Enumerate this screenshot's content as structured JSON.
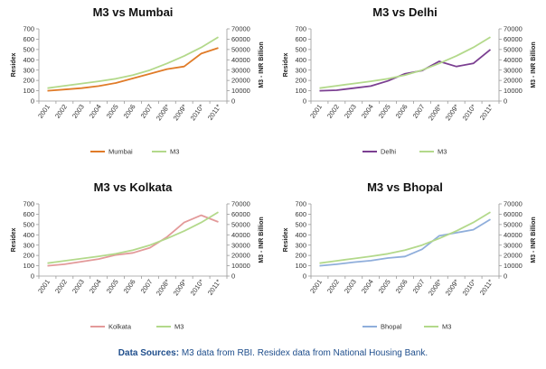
{
  "chart_data": [
    {
      "type": "line",
      "title": "M3 vs Mumbai",
      "categories": [
        "2001",
        "2002",
        "2003",
        "2004",
        "2005",
        "2006",
        "2007",
        "2008*",
        "2009*",
        "2010*",
        "2011*"
      ],
      "ylabel": "Residex",
      "ylim": [
        0,
        700
      ],
      "yticks": [
        "0",
        "100",
        "200",
        "300",
        "400",
        "500",
        "600",
        "700"
      ],
      "y2label": "M3 - INR Billion",
      "y2lim": [
        0,
        70000
      ],
      "y2ticks": [
        "0",
        "10000",
        "20000",
        "30000",
        "40000",
        "50000",
        "60000",
        "70000"
      ],
      "legend_position": "bottom",
      "grid": false,
      "series": [
        {
          "name": "Mumbai",
          "axis": "left",
          "color": "#e07b28",
          "values": [
            100,
            112,
            125,
            145,
            175,
            220,
            265,
            310,
            335,
            460,
            515
          ]
        },
        {
          "name": "M3",
          "axis": "right",
          "color": "#b3d98b",
          "values": [
            12500,
            14800,
            17000,
            19200,
            21600,
            25200,
            30000,
            36500,
            43700,
            52000,
            62000
          ]
        }
      ]
    },
    {
      "type": "line",
      "title": "M3 vs Delhi",
      "categories": [
        "2001",
        "2002",
        "2003",
        "2004",
        "2005",
        "2006",
        "2007",
        "2008*",
        "2009*",
        "2010*",
        "2011*"
      ],
      "ylabel": "Residex",
      "ylim": [
        0,
        700
      ],
      "yticks": [
        "0",
        "100",
        "200",
        "300",
        "400",
        "500",
        "600",
        "700"
      ],
      "y2label": "M3 - INR Billion",
      "y2lim": [
        0,
        70000
      ],
      "y2ticks": [
        "0",
        "10000",
        "20000",
        "30000",
        "40000",
        "50000",
        "60000",
        "70000"
      ],
      "legend_position": "bottom",
      "grid": false,
      "series": [
        {
          "name": "Delhi",
          "axis": "left",
          "color": "#7b3f91",
          "values": [
            100,
            105,
            125,
            145,
            195,
            265,
            295,
            385,
            335,
            365,
            500
          ]
        },
        {
          "name": "M3",
          "axis": "right",
          "color": "#b3d98b",
          "values": [
            12500,
            14800,
            17000,
            19200,
            21600,
            25200,
            30000,
            36500,
            43700,
            52000,
            62000
          ]
        }
      ]
    },
    {
      "type": "line",
      "title": "M3 vs Kolkata",
      "categories": [
        "2001",
        "2002",
        "2003",
        "2004",
        "2005",
        "2006",
        "2007",
        "2008*",
        "2009*",
        "2010*",
        "2011*"
      ],
      "ylabel": "Residex",
      "ylim": [
        0,
        700
      ],
      "yticks": [
        "0",
        "100",
        "200",
        "300",
        "400",
        "500",
        "600",
        "700"
      ],
      "y2label": "M3 - INR Billion",
      "y2lim": [
        0,
        70000
      ],
      "y2ticks": [
        "0",
        "10000",
        "20000",
        "30000",
        "40000",
        "50000",
        "60000",
        "70000"
      ],
      "legend_position": "bottom",
      "grid": false,
      "series": [
        {
          "name": "Kolkata",
          "axis": "left",
          "color": "#e39a9a",
          "values": [
            100,
            115,
            140,
            165,
            205,
            225,
            275,
            380,
            520,
            590,
            525
          ]
        },
        {
          "name": "M3",
          "axis": "right",
          "color": "#b3d98b",
          "values": [
            12500,
            14800,
            17000,
            19200,
            21600,
            25200,
            30000,
            36500,
            43700,
            52000,
            62000
          ]
        }
      ]
    },
    {
      "type": "line",
      "title": "M3 vs Bhopal",
      "categories": [
        "2001",
        "2002",
        "2003",
        "2004",
        "2005",
        "2006",
        "2007",
        "2008*",
        "2009*",
        "2010*",
        "2011*"
      ],
      "ylabel": "Residex",
      "ylim": [
        0,
        700
      ],
      "yticks": [
        "0",
        "100",
        "200",
        "300",
        "400",
        "500",
        "600",
        "700"
      ],
      "y2label": "M3 - INR Billion",
      "y2lim": [
        0,
        70000
      ],
      "y2ticks": [
        "0",
        "10000",
        "20000",
        "30000",
        "40000",
        "50000",
        "60000",
        "70000"
      ],
      "legend_position": "bottom",
      "grid": false,
      "series": [
        {
          "name": "Bhopal",
          "axis": "left",
          "color": "#8faedb",
          "values": [
            100,
            115,
            135,
            150,
            175,
            190,
            260,
            390,
            420,
            450,
            550
          ]
        },
        {
          "name": "M3",
          "axis": "right",
          "color": "#b3d98b",
          "values": [
            12500,
            14800,
            17000,
            19200,
            21600,
            25200,
            30000,
            36500,
            43700,
            52000,
            62000
          ]
        }
      ]
    }
  ],
  "footer": {
    "label": "Data Sources:",
    "text": " M3 data from RBI. Residex data from National Housing Bank."
  }
}
